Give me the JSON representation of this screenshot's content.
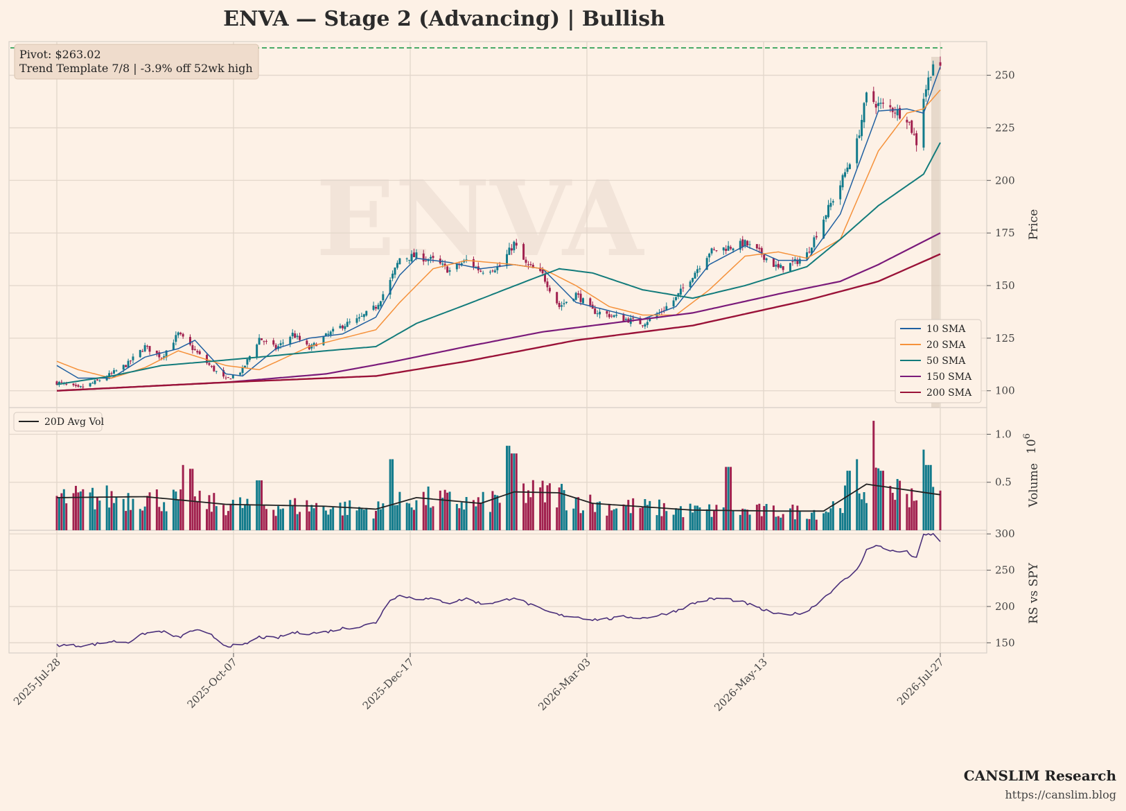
{
  "title": "ENVA  —  Stage 2 (Advancing)  |  Bullish",
  "watermark": "ENVA",
  "annotation": {
    "line1": "Pivot: $263.02",
    "line2": "Trend Template 7/8  |  -3.9% off 52wk high"
  },
  "footer": {
    "brand": "CANSLIM Research",
    "url": "https://canslim.blog"
  },
  "colors": {
    "background": "#fdf1e6",
    "up": "#117a8b",
    "down": "#a0204e",
    "sma10": "#1f5fa0",
    "sma20": "#f5913a",
    "sma50": "#127b7b",
    "sma150": "#7a1a7a",
    "sma200": "#9a1238",
    "avgvol": "#222222",
    "rs": "#4a2f7a",
    "pivot": "#1e9a4a"
  },
  "chart_data": [
    {
      "type": "candlestick",
      "panel": "price",
      "ylabel": "Price",
      "yticks": [
        100,
        125,
        150,
        175,
        200,
        225,
        250
      ],
      "ylim": [
        92,
        266
      ],
      "pivot": 263.02,
      "x_start": "2025-07-28",
      "x_end": "2026-08-03",
      "x_ticks": [
        "2025-Jul-28",
        "2025-Oct-07",
        "2025-Dec-17",
        "2026-Mar-03",
        "2026-May-13",
        "2026-Jul-27"
      ],
      "close_anchors": [
        [
          "2025-07-28",
          104
        ],
        [
          "2025-08-06",
          101
        ],
        [
          "2025-08-13",
          104
        ],
        [
          "2025-08-20",
          108
        ],
        [
          "2025-08-27",
          113
        ],
        [
          "2025-09-03",
          121
        ],
        [
          "2025-09-10",
          116
        ],
        [
          "2025-09-17",
          127
        ],
        [
          "2025-09-24",
          119
        ],
        [
          "2025-10-01",
          111
        ],
        [
          "2025-10-07",
          105
        ],
        [
          "2025-10-14",
          110
        ],
        [
          "2025-10-21",
          125
        ],
        [
          "2025-10-28",
          120
        ],
        [
          "2025-11-04",
          127
        ],
        [
          "2025-11-11",
          120
        ],
        [
          "2025-11-18",
          126
        ],
        [
          "2025-11-25",
          131
        ],
        [
          "2025-12-02",
          134
        ],
        [
          "2025-12-09",
          140
        ],
        [
          "2025-12-15",
          152
        ],
        [
          "2025-12-19",
          163
        ],
        [
          "2025-12-26",
          164
        ],
        [
          "2026-01-02",
          162
        ],
        [
          "2026-01-09",
          157
        ],
        [
          "2026-01-16",
          162
        ],
        [
          "2026-01-22",
          157
        ],
        [
          "2026-01-30",
          159
        ],
        [
          "2026-02-05",
          170
        ],
        [
          "2026-02-10",
          160
        ],
        [
          "2026-02-17",
          155
        ],
        [
          "2026-02-24",
          140
        ],
        [
          "2026-03-03",
          146
        ],
        [
          "2026-03-10",
          138
        ],
        [
          "2026-03-17",
          136
        ],
        [
          "2026-03-24",
          134
        ],
        [
          "2026-03-31",
          132
        ],
        [
          "2026-04-07",
          137
        ],
        [
          "2026-04-14",
          144
        ],
        [
          "2026-04-21",
          155
        ],
        [
          "2026-04-28",
          166
        ],
        [
          "2026-05-05",
          168
        ],
        [
          "2026-05-13",
          170
        ],
        [
          "2026-05-20",
          165
        ],
        [
          "2026-05-27",
          158
        ],
        [
          "2026-06-03",
          161
        ],
        [
          "2026-06-08",
          165
        ],
        [
          "2026-06-15",
          182
        ],
        [
          "2026-06-22",
          198
        ],
        [
          "2026-06-29",
          218
        ],
        [
          "2026-07-03",
          240
        ],
        [
          "2026-07-08",
          236
        ],
        [
          "2026-07-14",
          234
        ],
        [
          "2026-07-20",
          230
        ],
        [
          "2026-07-24",
          218
        ],
        [
          "2026-07-27",
          240
        ],
        [
          "2026-07-31",
          256
        ],
        [
          "2026-08-03",
          252
        ]
      ],
      "sma": [
        {
          "name": "10 SMA",
          "points": [
            [
              "2025-07-28",
              112
            ],
            [
              "2025-08-06",
              106
            ],
            [
              "2025-08-20",
              106
            ],
            [
              "2025-09-03",
              116
            ],
            [
              "2025-09-17",
              120
            ],
            [
              "2025-09-24",
              124
            ],
            [
              "2025-10-07",
              108
            ],
            [
              "2025-10-14",
              107
            ],
            [
              "2025-10-28",
              120
            ],
            [
              "2025-11-11",
              125
            ],
            [
              "2025-11-25",
              127
            ],
            [
              "2025-12-09",
              135
            ],
            [
              "2025-12-19",
              155
            ],
            [
              "2025-12-26",
              163
            ],
            [
              "2026-01-09",
              161
            ],
            [
              "2026-01-22",
              158
            ],
            [
              "2026-02-05",
              160
            ],
            [
              "2026-02-17",
              158
            ],
            [
              "2026-03-03",
              142
            ],
            [
              "2026-03-17",
              138
            ],
            [
              "2026-03-31",
              134
            ],
            [
              "2026-04-14",
              140
            ],
            [
              "2026-04-28",
              160
            ],
            [
              "2026-05-13",
              169
            ],
            [
              "2026-05-27",
              162
            ],
            [
              "2026-06-08",
              162
            ],
            [
              "2026-06-22",
              184
            ],
            [
              "2026-07-08",
              233
            ],
            [
              "2026-07-20",
              234
            ],
            [
              "2026-07-27",
              232
            ],
            [
              "2026-08-03",
              254
            ]
          ]
        },
        {
          "name": "20 SMA",
          "points": [
            [
              "2025-07-28",
              114
            ],
            [
              "2025-08-06",
              110
            ],
            [
              "2025-08-20",
              106
            ],
            [
              "2025-09-03",
              111
            ],
            [
              "2025-09-17",
              119
            ],
            [
              "2025-10-07",
              112
            ],
            [
              "2025-10-21",
              110
            ],
            [
              "2025-11-11",
              121
            ],
            [
              "2025-11-25",
              125
            ],
            [
              "2025-12-09",
              129
            ],
            [
              "2025-12-19",
              142
            ],
            [
              "2026-01-02",
              158
            ],
            [
              "2026-01-16",
              162
            ],
            [
              "2026-02-05",
              160
            ],
            [
              "2026-02-17",
              158
            ],
            [
              "2026-03-03",
              150
            ],
            [
              "2026-03-17",
              140
            ],
            [
              "2026-03-31",
              136
            ],
            [
              "2026-04-14",
              136
            ],
            [
              "2026-04-28",
              148
            ],
            [
              "2026-05-13",
              164
            ],
            [
              "2026-05-27",
              166
            ],
            [
              "2026-06-08",
              163
            ],
            [
              "2026-06-22",
              172
            ],
            [
              "2026-07-08",
              214
            ],
            [
              "2026-07-20",
              232
            ],
            [
              "2026-07-27",
              234
            ],
            [
              "2026-08-03",
              243
            ]
          ]
        },
        {
          "name": "50 SMA",
          "points": [
            [
              "2025-07-28",
              103
            ],
            [
              "2025-08-20",
              107
            ],
            [
              "2025-09-10",
              112
            ],
            [
              "2025-10-01",
              114
            ],
            [
              "2025-10-21",
              116
            ],
            [
              "2025-11-18",
              119
            ],
            [
              "2025-12-09",
              121
            ],
            [
              "2025-12-26",
              132
            ],
            [
              "2026-01-16",
              141
            ],
            [
              "2026-02-10",
              152
            ],
            [
              "2026-02-24",
              158
            ],
            [
              "2026-03-10",
              156
            ],
            [
              "2026-03-31",
              148
            ],
            [
              "2026-04-21",
              144
            ],
            [
              "2026-05-13",
              150
            ],
            [
              "2026-06-08",
              159
            ],
            [
              "2026-06-22",
              172
            ],
            [
              "2026-07-08",
              188
            ],
            [
              "2026-07-27",
              203
            ],
            [
              "2026-08-03",
              218
            ]
          ]
        },
        {
          "name": "150 SMA",
          "points": [
            [
              "2025-07-28",
              100
            ],
            [
              "2025-10-07",
              104
            ],
            [
              "2025-11-18",
              108
            ],
            [
              "2025-12-17",
              114
            ],
            [
              "2026-01-16",
              121
            ],
            [
              "2026-02-17",
              128
            ],
            [
              "2026-03-24",
              133
            ],
            [
              "2026-04-21",
              137
            ],
            [
              "2026-05-27",
              146
            ],
            [
              "2026-06-22",
              152
            ],
            [
              "2026-07-08",
              160
            ],
            [
              "2026-08-03",
              175
            ]
          ]
        },
        {
          "name": "200 SMA",
          "points": [
            [
              "2025-07-28",
              100
            ],
            [
              "2025-10-07",
              104
            ],
            [
              "2025-12-09",
              107
            ],
            [
              "2026-01-16",
              114
            ],
            [
              "2026-03-03",
              124
            ],
            [
              "2026-04-21",
              131
            ],
            [
              "2026-06-08",
              143
            ],
            [
              "2026-07-08",
              152
            ],
            [
              "2026-08-03",
              165
            ]
          ]
        }
      ]
    },
    {
      "type": "bar",
      "panel": "volume",
      "ylabel": "Volume",
      "multiplier": "10",
      "multiplier_exp": "6",
      "yticks": [
        0.5,
        1.0
      ],
      "ylim": [
        0,
        1.22
      ],
      "series_name": "20D Avg Vol",
      "avg_anchors": [
        [
          "2025-07-28",
          0.34
        ],
        [
          "2025-09-03",
          0.35
        ],
        [
          "2025-10-07",
          0.27
        ],
        [
          "2025-11-18",
          0.25
        ],
        [
          "2025-12-09",
          0.22
        ],
        [
          "2025-12-26",
          0.34
        ],
        [
          "2026-01-22",
          0.28
        ],
        [
          "2026-02-05",
          0.4
        ],
        [
          "2026-02-24",
          0.39
        ],
        [
          "2026-03-10",
          0.28
        ],
        [
          "2026-04-21",
          0.21
        ],
        [
          "2026-05-27",
          0.2
        ],
        [
          "2026-06-15",
          0.2
        ],
        [
          "2026-07-03",
          0.48
        ],
        [
          "2026-07-20",
          0.42
        ],
        [
          "2026-08-03",
          0.37
        ]
      ],
      "spikes": [
        [
          "2025-09-20",
          0.68
        ],
        [
          "2025-09-22",
          0.64
        ],
        [
          "2025-10-21",
          0.52
        ],
        [
          "2025-12-15",
          0.74
        ],
        [
          "2026-02-01",
          0.82
        ],
        [
          "2026-02-03",
          0.88
        ],
        [
          "2026-02-05",
          0.8
        ],
        [
          "2026-05-06",
          0.66
        ],
        [
          "2026-06-26",
          0.62
        ],
        [
          "2026-06-28",
          0.74
        ],
        [
          "2026-07-05",
          1.14
        ],
        [
          "2026-07-10",
          0.62
        ],
        [
          "2026-07-27",
          0.84
        ],
        [
          "2026-07-29",
          0.68
        ]
      ]
    },
    {
      "type": "line",
      "panel": "rs",
      "ylabel": "RS vs SPY",
      "yticks": [
        150,
        200,
        250,
        300
      ],
      "ylim": [
        136,
        305
      ],
      "points": [
        [
          "2025-07-28",
          147
        ],
        [
          "2025-08-06",
          146
        ],
        [
          "2025-08-13",
          148
        ],
        [
          "2025-08-20",
          152
        ],
        [
          "2025-08-27",
          151
        ],
        [
          "2025-09-03",
          163
        ],
        [
          "2025-09-10",
          166
        ],
        [
          "2025-09-17",
          157
        ],
        [
          "2025-09-24",
          168
        ],
        [
          "2025-10-01",
          160
        ],
        [
          "2025-10-07",
          146
        ],
        [
          "2025-10-14",
          146
        ],
        [
          "2025-10-21",
          158
        ],
        [
          "2025-10-28",
          156
        ],
        [
          "2025-11-04",
          164
        ],
        [
          "2025-11-11",
          163
        ],
        [
          "2025-11-18",
          165
        ],
        [
          "2025-11-25",
          170
        ],
        [
          "2025-12-02",
          172
        ],
        [
          "2025-12-09",
          178
        ],
        [
          "2025-12-15",
          210
        ],
        [
          "2025-12-19",
          215
        ],
        [
          "2025-12-26",
          211
        ],
        [
          "2026-01-02",
          210
        ],
        [
          "2026-01-09",
          205
        ],
        [
          "2026-01-16",
          211
        ],
        [
          "2026-01-22",
          204
        ],
        [
          "2026-01-30",
          206
        ],
        [
          "2026-02-05",
          213
        ],
        [
          "2026-02-10",
          205
        ],
        [
          "2026-02-17",
          195
        ],
        [
          "2026-02-24",
          188
        ],
        [
          "2026-03-03",
          186
        ],
        [
          "2026-03-10",
          182
        ],
        [
          "2026-03-17",
          183
        ],
        [
          "2026-03-24",
          186
        ],
        [
          "2026-03-31",
          184
        ],
        [
          "2026-04-07",
          188
        ],
        [
          "2026-04-14",
          194
        ],
        [
          "2026-04-21",
          204
        ],
        [
          "2026-04-28",
          210
        ],
        [
          "2026-05-05",
          211
        ],
        [
          "2026-05-13",
          205
        ],
        [
          "2026-05-20",
          196
        ],
        [
          "2026-05-27",
          189
        ],
        [
          "2026-06-03",
          190
        ],
        [
          "2026-06-08",
          193
        ],
        [
          "2026-06-15",
          212
        ],
        [
          "2026-06-22",
          232
        ],
        [
          "2026-06-29",
          250
        ],
        [
          "2026-07-03",
          278
        ],
        [
          "2026-07-08",
          284
        ],
        [
          "2026-07-14",
          276
        ],
        [
          "2026-07-20",
          275
        ],
        [
          "2026-07-24",
          266
        ],
        [
          "2026-07-27",
          298
        ],
        [
          "2026-07-31",
          300
        ],
        [
          "2026-08-03",
          288
        ]
      ]
    }
  ]
}
